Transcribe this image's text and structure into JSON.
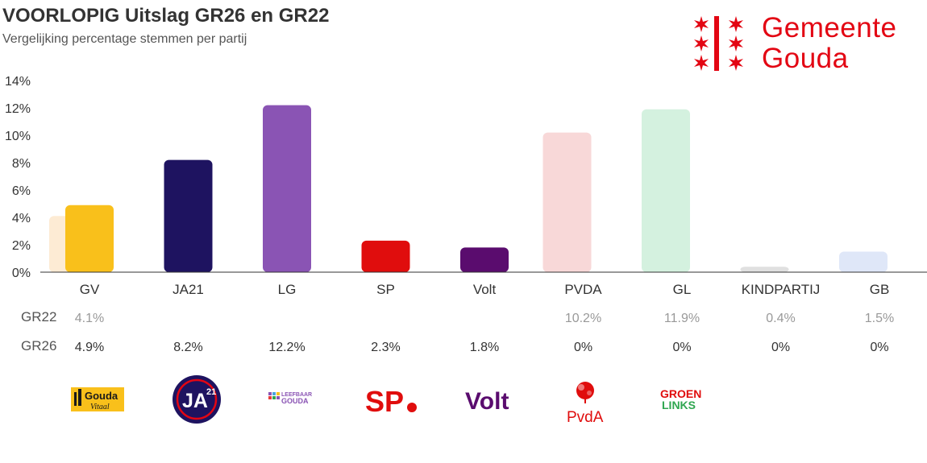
{
  "header": {
    "title": "VOORLOPIG Uitslag GR26 en GR22",
    "subtitle": "Vergelijking percentage stemmen per partij"
  },
  "logo": {
    "line1": "Gemeente",
    "line2": "Gouda",
    "color": "#e30613"
  },
  "party_logos": {
    "gv_line1": "Gouda",
    "gv_line2": "Vitaal",
    "ja21_main": "JA",
    "ja21_sup": "21",
    "lg_line1": "LEEFBAAR",
    "lg_line2": "GOUDA",
    "sp": "SP",
    "volt": "Volt",
    "pvda": "PvdA",
    "gl_line1": "GROEN",
    "gl_line2": "LINKS"
  },
  "chart_data": {
    "type": "bar",
    "title": "VOORLOPIG Uitslag GR26 en GR22",
    "subtitle": "Vergelijking percentage stemmen per partij",
    "xlabel": "",
    "ylabel": "",
    "ylim": [
      0,
      14
    ],
    "yticks": [
      0,
      2,
      4,
      6,
      8,
      10,
      12,
      14
    ],
    "ytick_labels": [
      "0%",
      "2%",
      "4%",
      "6%",
      "8%",
      "10%",
      "12%",
      "14%"
    ],
    "categories": [
      "GV",
      "JA21",
      "LG",
      "SP",
      "Volt",
      "PVDA",
      "GL",
      "KINDPARTIJ",
      "GB"
    ],
    "series": [
      {
        "name": "GR22",
        "values": [
          4.1,
          null,
          null,
          null,
          null,
          10.2,
          11.9,
          0.4,
          1.5
        ],
        "labels": [
          "4.1%",
          "",
          "",
          "",
          "",
          "10.2%",
          "11.9%",
          "0.4%",
          "1.5%"
        ]
      },
      {
        "name": "GR26",
        "values": [
          4.9,
          8.2,
          12.2,
          2.3,
          1.8,
          0,
          0,
          0,
          0
        ],
        "labels": [
          "4.9%",
          "8.2%",
          "12.2%",
          "2.3%",
          "1.8%",
          "0%",
          "0%",
          "0%",
          "0%"
        ]
      }
    ],
    "colors": {
      "GR26": [
        "#f9c01b",
        "#1e1360",
        "#8a54b4",
        "#e00d0d",
        "#5a0c6e",
        "#e83a3a",
        "#2fa650",
        "#999999",
        "#8aa6e0"
      ],
      "GR22": [
        "#fdebd4",
        "#d6d3e6",
        "#e5d7f0",
        "#f9d0d0",
        "#e2d2e8",
        "#f8d8d8",
        "#d4f1df",
        "#e0e0e0",
        "#dfe7f8"
      ]
    },
    "axis_color": "#333333",
    "grid": false,
    "legend": "row labels below axis"
  }
}
